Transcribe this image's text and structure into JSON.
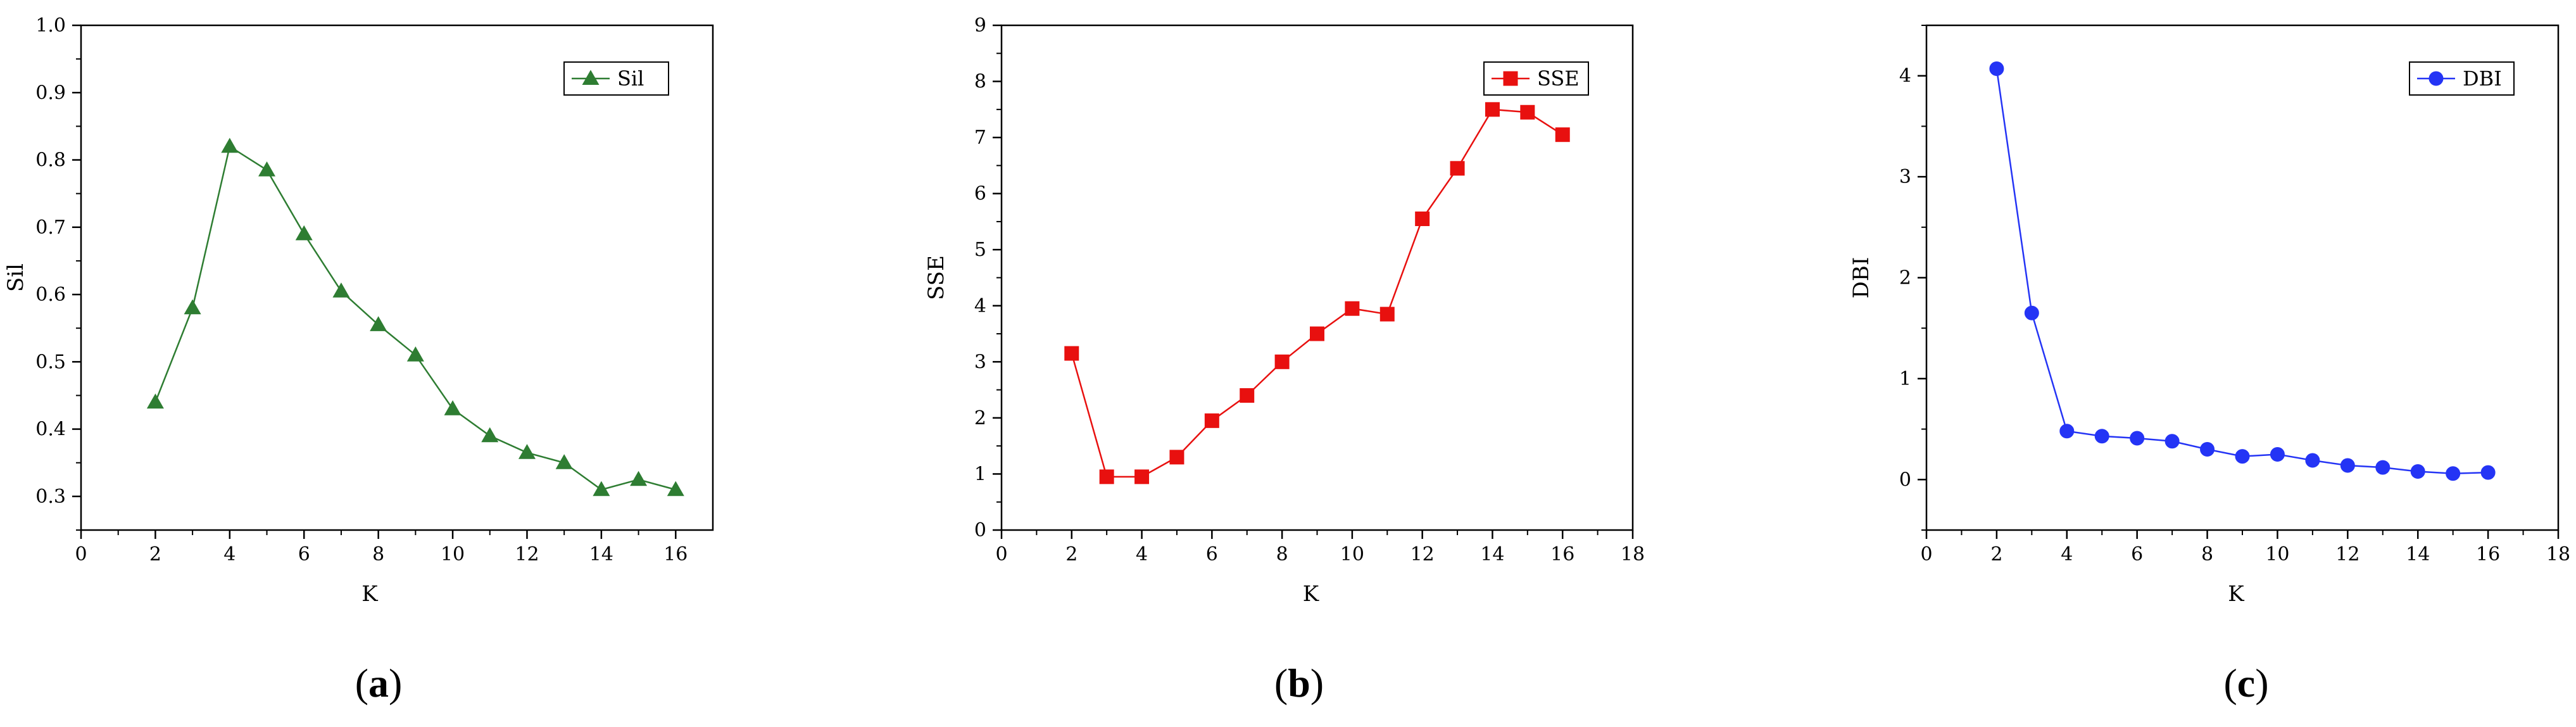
{
  "chart_data": [
    {
      "type": "line",
      "panel_label": {
        "open": "(",
        "letter": "a",
        "close": ")"
      },
      "xlabel": "K",
      "ylabel": "Sil",
      "xlim": [
        0,
        17
      ],
      "ylim": [
        0.25,
        1.0
      ],
      "x_ticks": [
        "0",
        "2",
        "4",
        "6",
        "8",
        "10",
        "12",
        "14",
        "16"
      ],
      "y_ticks": [
        "0.3",
        "0.4",
        "0.5",
        "0.6",
        "0.7",
        "0.8",
        "0.9",
        "1.0"
      ],
      "legend_position": "top-right",
      "grid": false,
      "series": [
        {
          "name": "Sil",
          "color": "#2e7d32",
          "marker": "triangle",
          "x": [
            2,
            3,
            4,
            5,
            6,
            7,
            8,
            9,
            10,
            11,
            12,
            13,
            14,
            15,
            16
          ],
          "y": [
            0.44,
            0.58,
            0.82,
            0.785,
            0.69,
            0.605,
            0.555,
            0.51,
            0.43,
            0.39,
            0.365,
            0.35,
            0.31,
            0.325,
            0.31
          ]
        }
      ]
    },
    {
      "type": "line",
      "panel_label": {
        "open": "(",
        "letter": "b",
        "close": ")"
      },
      "xlabel": "K",
      "ylabel": "SSE",
      "xlim": [
        0,
        18
      ],
      "ylim": [
        0,
        9
      ],
      "x_ticks": [
        "0",
        "2",
        "4",
        "6",
        "8",
        "10",
        "12",
        "14",
        "16",
        "18"
      ],
      "y_ticks": [
        "0",
        "1",
        "2",
        "3",
        "4",
        "5",
        "6",
        "7",
        "8",
        "9"
      ],
      "legend_position": "top-right",
      "grid": false,
      "series": [
        {
          "name": "SSE",
          "color": "#e8100f",
          "marker": "square",
          "x": [
            2,
            3,
            4,
            5,
            6,
            7,
            8,
            9,
            10,
            11,
            12,
            13,
            14,
            15,
            16
          ],
          "y": [
            3.15,
            0.95,
            0.95,
            1.3,
            1.95,
            2.4,
            3.0,
            3.5,
            3.95,
            3.85,
            5.55,
            6.45,
            7.5,
            7.45,
            7.05
          ]
        }
      ]
    },
    {
      "type": "line",
      "panel_label": {
        "open": "(",
        "letter": "c",
        "close": ")"
      },
      "xlabel": "K",
      "ylabel": "DBI",
      "xlim": [
        0,
        18
      ],
      "ylim": [
        -0.5,
        4.5
      ],
      "x_ticks": [
        "0",
        "2",
        "4",
        "6",
        "8",
        "10",
        "12",
        "14",
        "16",
        "18"
      ],
      "y_ticks": [
        "0",
        "1",
        "2",
        "3",
        "4"
      ],
      "legend_position": "top-right",
      "grid": false,
      "series": [
        {
          "name": "DBI",
          "color": "#2434f5",
          "marker": "circle",
          "x": [
            2,
            3,
            4,
            5,
            6,
            7,
            8,
            9,
            10,
            11,
            12,
            13,
            14,
            15,
            16
          ],
          "y": [
            4.07,
            1.65,
            0.48,
            0.43,
            0.41,
            0.38,
            0.3,
            0.23,
            0.25,
            0.19,
            0.14,
            0.12,
            0.08,
            0.06,
            0.07
          ]
        }
      ]
    }
  ]
}
